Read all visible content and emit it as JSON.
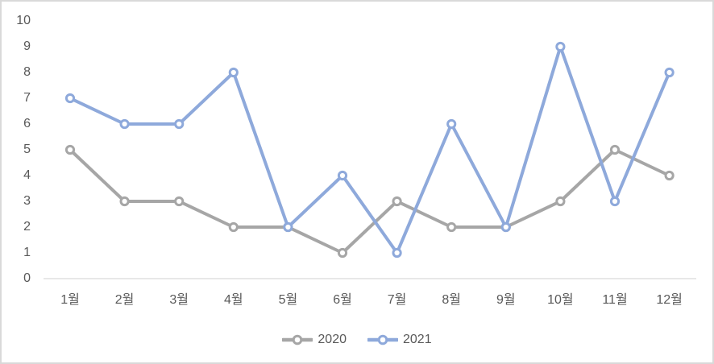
{
  "chart_data": {
    "type": "line",
    "title": "",
    "categories": [
      "1월",
      "2월",
      "3월",
      "4월",
      "5월",
      "6월",
      "7월",
      "8월",
      "9월",
      "10월",
      "11월",
      "12월"
    ],
    "series": [
      {
        "name": "2020",
        "color": "#A6A6A6",
        "marker": "open-circle",
        "values": [
          5,
          3,
          3,
          2,
          2,
          1,
          3,
          2,
          2,
          3,
          5,
          4
        ]
      },
      {
        "name": "2021",
        "color": "#8EA9DB",
        "marker": "open-circle",
        "values": [
          7,
          6,
          6,
          8,
          2,
          4,
          1,
          6,
          2,
          9,
          3,
          8
        ]
      }
    ],
    "ylim": [
      0,
      10
    ],
    "yticks": [
      0,
      1,
      2,
      3,
      4,
      5,
      6,
      7,
      8,
      9,
      10
    ],
    "grid": false,
    "legend_position": "bottom-center",
    "colors": {
      "axis_line": "#D9D9D9",
      "tick_text": "#595959",
      "frame_border": "#D9D9D9",
      "background": "#FFFFFF"
    }
  }
}
